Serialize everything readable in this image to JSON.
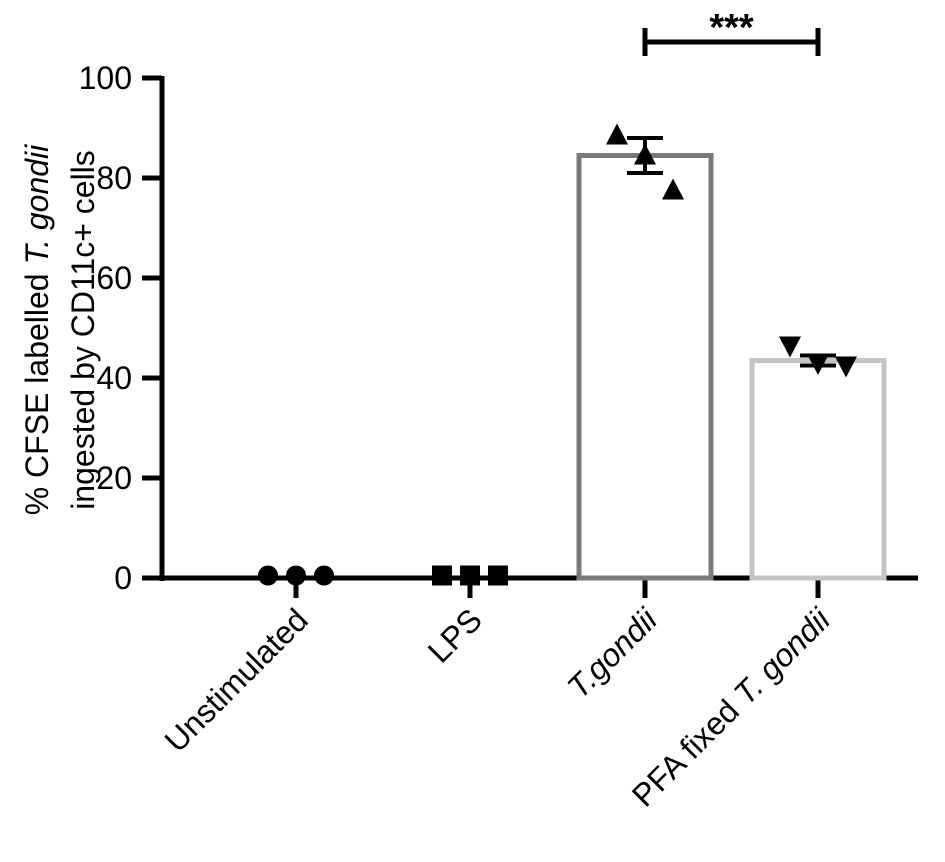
{
  "chart_data": {
    "type": "bar",
    "ylabel_line1_prefix": "% CFSE labelled ",
    "ylabel_line1_italic": "T. gondii",
    "ylabel_line2": "ingested by CD11c+ cells",
    "categories": [
      {
        "label": "Unstimulated",
        "italic": ""
      },
      {
        "label": "LPS",
        "italic": ""
      },
      {
        "label": "",
        "italic": "T.gondii"
      },
      {
        "label": "PFA fixed ",
        "italic": "T. gondii"
      }
    ],
    "values": [
      0.3,
      0.3,
      84.5,
      43.5
    ],
    "error": [
      0,
      0,
      3.5,
      1.0
    ],
    "points": [
      [
        0.3,
        0.3,
        0.3
      ],
      [
        0.3,
        0.3,
        0.3
      ],
      [
        88.5,
        84.5,
        77.5
      ],
      [
        46.5,
        43.0,
        42.5
      ]
    ],
    "markers": [
      "circle",
      "square",
      "triangle-up",
      "triangle-down"
    ],
    "bar_colors": [
      "#000000",
      "#000000",
      "#7a7a7a",
      "#c4c4c4"
    ],
    "yticks": [
      0,
      20,
      40,
      60,
      80,
      100
    ],
    "ylim": [
      0,
      100
    ],
    "significance": {
      "from": 2,
      "to": 3,
      "label": "***"
    }
  }
}
